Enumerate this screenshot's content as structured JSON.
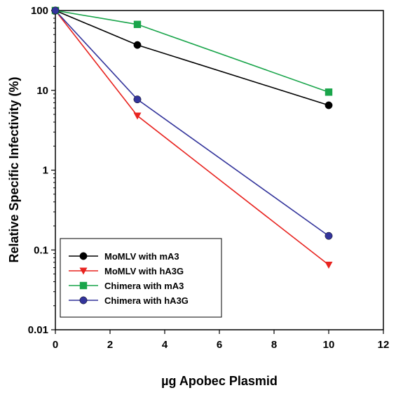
{
  "chart_data": {
    "type": "line",
    "title": "",
    "xlabel": "µg Apobec Plasmid",
    "ylabel": "Relative Specific Infectivity (%)",
    "xlim": [
      0,
      12
    ],
    "ylim": [
      0.01,
      100
    ],
    "yscale": "log",
    "xticks": [
      0,
      2,
      4,
      6,
      8,
      10,
      12
    ],
    "xtick_labels": [
      "0",
      "2",
      "4",
      "6",
      "8",
      "10",
      "12"
    ],
    "yticks": [
      0.01,
      0.1,
      1,
      10,
      100
    ],
    "ytick_labels": [
      "0.01",
      "0.1",
      "1",
      "10",
      "100"
    ],
    "grid": false,
    "legend_position": "bottom-left",
    "series": [
      {
        "name": "MoMLV with mA3",
        "color": "#000000",
        "marker": "circle",
        "x": [
          0,
          3,
          10
        ],
        "y": [
          100,
          37,
          6.5
        ]
      },
      {
        "name": "MoMLV with hA3G",
        "color": "#e8231f",
        "marker": "triangle-down",
        "x": [
          0,
          3,
          10
        ],
        "y": [
          100,
          4.8,
          0.065
        ]
      },
      {
        "name": "Chimera with mA3",
        "color": "#1aa54b",
        "marker": "square",
        "x": [
          0,
          3,
          10
        ],
        "y": [
          100,
          67,
          9.5
        ]
      },
      {
        "name": "Chimera with hA3G",
        "color": "#33349b",
        "marker": "circle",
        "x": [
          0,
          3,
          10
        ],
        "y": [
          100,
          7.7,
          0.15
        ]
      }
    ]
  }
}
